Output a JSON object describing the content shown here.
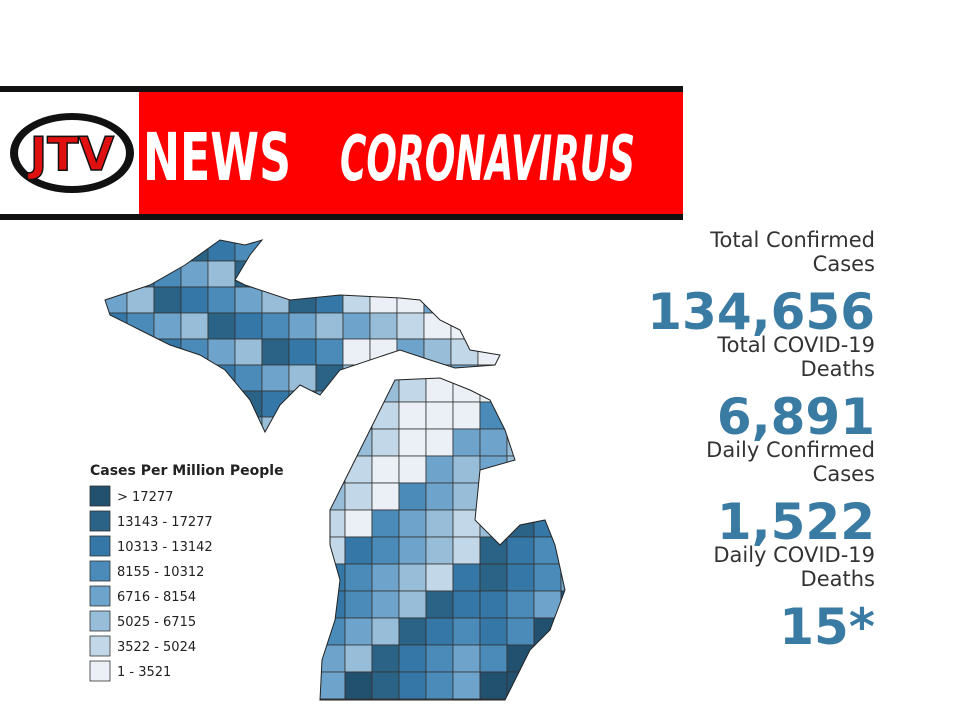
{
  "banner": {
    "logo": "JTV",
    "left": "NEWS",
    "right": "CORONAVIRUS"
  },
  "legend": {
    "title": "Cases Per Million People",
    "items": [
      {
        "label": "> 17277",
        "color": "#22506f"
      },
      {
        "label": "13143 - 17277",
        "color": "#2b6387"
      },
      {
        "label": "10313 - 13142",
        "color": "#3577a7"
      },
      {
        "label": "8155 - 10312",
        "color": "#4a8bb9"
      },
      {
        "label": "6716 - 8154",
        "color": "#6ea4cc"
      },
      {
        "label": "5025 - 6715",
        "color": "#98bdd8"
      },
      {
        "label": "3522 - 5024",
        "color": "#c2d7e7"
      },
      {
        "label": "1 - 3521",
        "color": "#eaf0f6"
      }
    ]
  },
  "stats": [
    {
      "label": [
        "Total Confirmed",
        "Cases"
      ],
      "value": "134,656"
    },
    {
      "label": [
        "Total COVID-19",
        "Deaths"
      ],
      "value": "6,891"
    },
    {
      "label": [
        "Daily Confirmed",
        "Cases"
      ],
      "value": "1,522"
    },
    {
      "label": [
        "Daily COVID-19",
        "Deaths"
      ],
      "value": "15*"
    }
  ]
}
